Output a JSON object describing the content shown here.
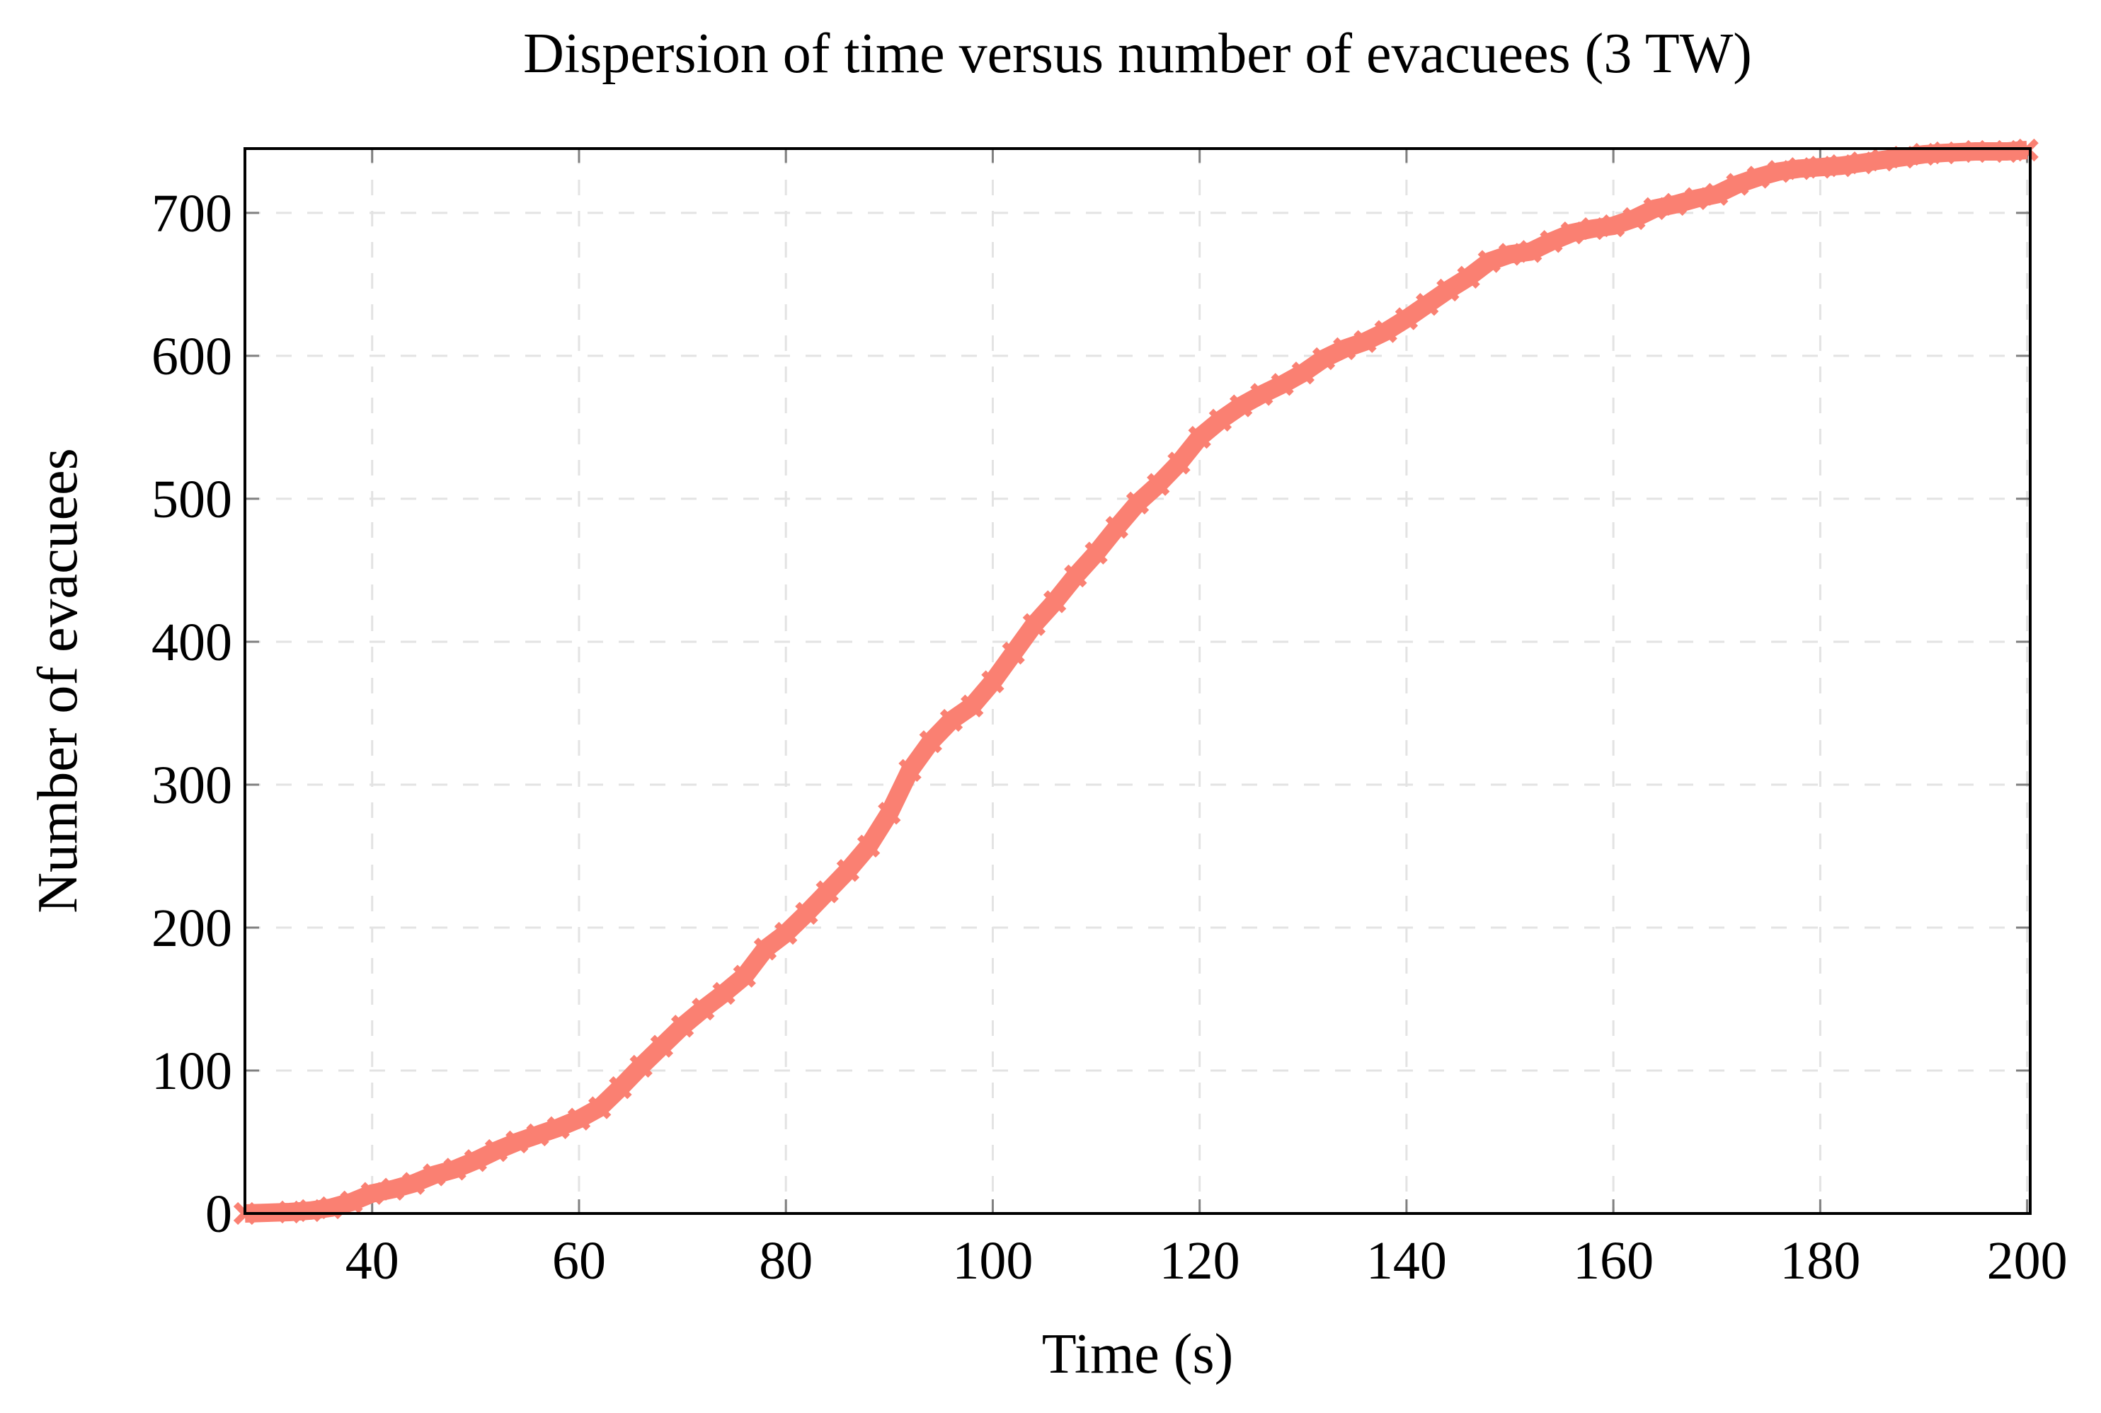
{
  "chart_data": {
    "type": "line",
    "title": "Dispersion of time versus number of evacuees (3 TW)",
    "xlabel": "Time (s)",
    "ylabel": "Number of evacuees",
    "xlim": [
      27.7,
      200.3
    ],
    "ylim": [
      0,
      745
    ],
    "xticks": [
      40,
      60,
      80,
      100,
      120,
      140,
      160,
      180,
      200
    ],
    "yticks": [
      0,
      100,
      200,
      300,
      400,
      500,
      600,
      700
    ],
    "grid": true,
    "grid_style": "dashed",
    "marker": "x",
    "color": "#FA8072",
    "series": [
      {
        "x": [
          27.7,
          32,
          34,
          36,
          38,
          40,
          42,
          44,
          46,
          48,
          50,
          52,
          54,
          56,
          58,
          60,
          62,
          64,
          66,
          68,
          70,
          72,
          74,
          76,
          78,
          80,
          82,
          84,
          86,
          88,
          90,
          92,
          94,
          96,
          98,
          100,
          102,
          104,
          106,
          108,
          110,
          112,
          114,
          116,
          118,
          120,
          122,
          124,
          126,
          128,
          130,
          132,
          134,
          136,
          138,
          140,
          142,
          144,
          146,
          148,
          150,
          152,
          154,
          156,
          158,
          160,
          162,
          164,
          166,
          168,
          170,
          172,
          174,
          176,
          178,
          180,
          182,
          184,
          186,
          188,
          190,
          192,
          195,
          198,
          200
        ],
        "y": [
          0,
          1,
          2,
          4,
          8,
          14,
          17,
          21,
          27,
          31,
          37,
          44,
          50,
          55,
          60,
          66,
          74,
          88,
          103,
          117,
          131,
          143,
          154,
          166,
          185,
          196,
          210,
          225,
          240,
          257,
          280,
          310,
          330,
          345,
          355,
          372,
          392,
          412,
          428,
          446,
          462,
          480,
          497,
          510,
          525,
          543,
          555,
          565,
          573,
          580,
          588,
          598,
          605,
          610,
          617,
          626,
          636,
          646,
          655,
          666,
          671,
          673,
          680,
          686,
          689,
          691,
          696,
          703,
          706,
          710,
          713,
          720,
          725,
          729,
          731,
          732,
          733,
          735,
          737,
          739,
          741,
          742,
          743,
          743,
          744
        ]
      }
    ]
  }
}
